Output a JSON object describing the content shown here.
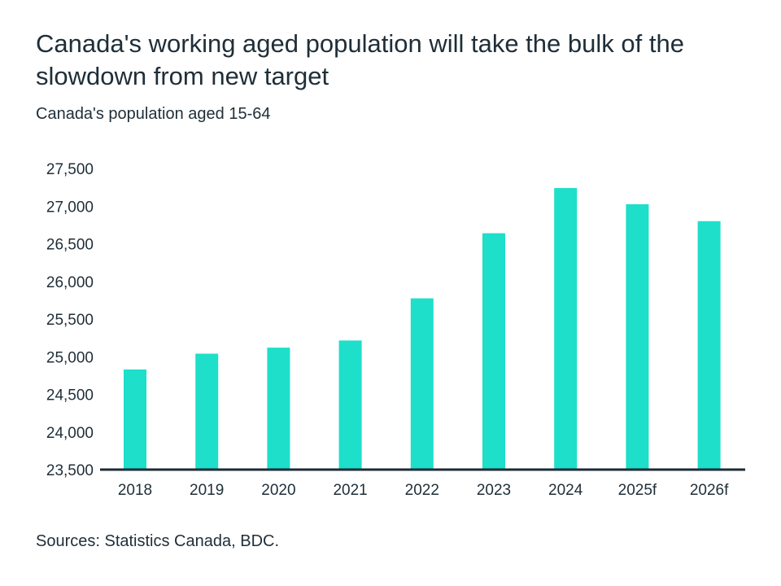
{
  "chart_data": {
    "type": "bar",
    "title": "Canada's working aged population will take the bulk of the slowdown from new target",
    "subtitle": "Canada's population aged 15-64",
    "source": "Sources: Statistics Canada, BDC.",
    "categories": [
      "2018",
      "2019",
      "2020",
      "2021",
      "2022",
      "2023",
      "2024",
      "2025f",
      "2026f"
    ],
    "values": [
      24830,
      25040,
      25120,
      25215,
      25775,
      26640,
      27240,
      27025,
      26800
    ],
    "ylim": [
      23500,
      27500
    ],
    "yticks": [
      23500,
      24000,
      24500,
      25000,
      25500,
      26000,
      26500,
      27000,
      27500
    ],
    "ytick_labels": [
      "23,500",
      "24,000",
      "24,500",
      "25,000",
      "25,500",
      "26,000",
      "26,500",
      "27,000",
      "27,500"
    ],
    "xlabel": "",
    "ylabel": "",
    "grid": false,
    "bar_color": "#1ddfca",
    "axis_color": "#1c2b36"
  }
}
